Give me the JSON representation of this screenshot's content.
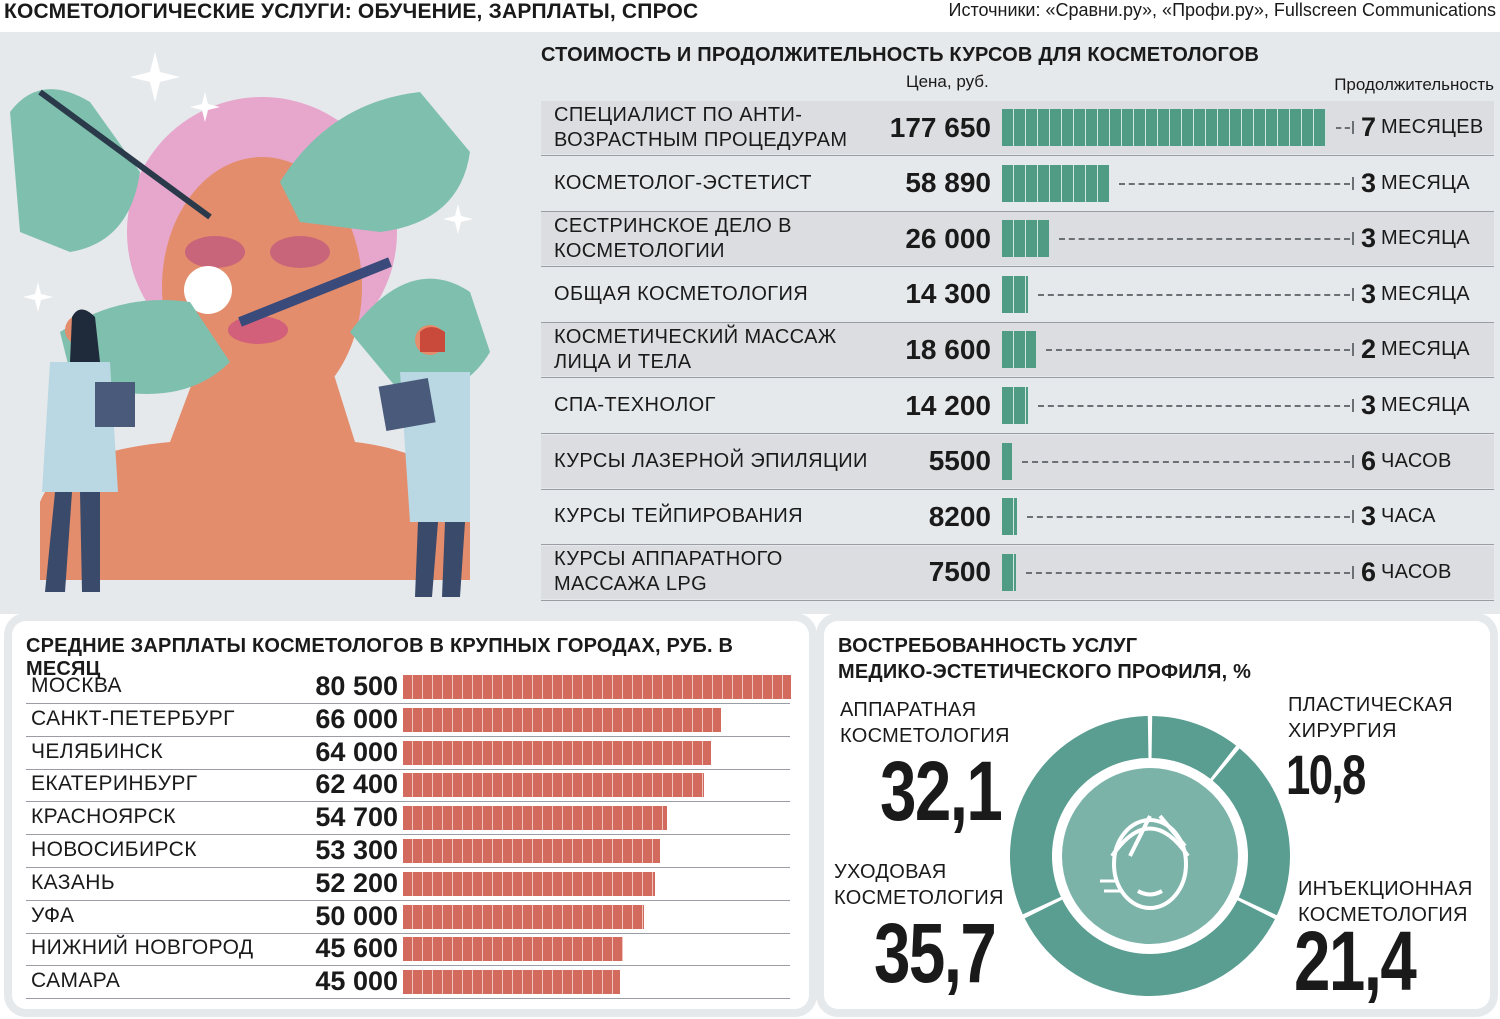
{
  "header": {
    "title": "КОСМЕТОЛОГИЧЕСКИЕ УСЛУГИ: ОБУЧЕНИЕ, ЗАРПЛАТЫ, СПРОС",
    "sources": "Источники: «Сравни.ру», «Профи.ру», Fullscreen Communications"
  },
  "colors": {
    "teal": "#4f9b84",
    "teal_dark": "#5a9e92",
    "coral": "#d26a5e",
    "panel_bg": "#e6e9ec"
  },
  "chart_data": [
    {
      "type": "bar",
      "orientation": "horizontal",
      "title": "СТОИМОСТЬ И ПРОДОЛЖИТЕЛЬНОСТЬ КУРСОВ ДЛЯ КОСМЕТОЛОГОВ",
      "value_header": "Цена, руб.",
      "duration_header": "Продолжительность",
      "rows": [
        {
          "name": "Специалист по анти-возрастным процедурам",
          "price": 177650,
          "price_label": "177 650",
          "duration_num": "7",
          "duration_unit": "месяцев"
        },
        {
          "name": "Косметолог-эстетист",
          "price": 58890,
          "price_label": "58 890",
          "duration_num": "3",
          "duration_unit": "месяца"
        },
        {
          "name": "Сестринское дело в косметологии",
          "price": 26000,
          "price_label": "26 000",
          "duration_num": "3",
          "duration_unit": "месяца"
        },
        {
          "name": "Общая косметология",
          "price": 14300,
          "price_label": "14 300",
          "duration_num": "3",
          "duration_unit": "месяца"
        },
        {
          "name": "Косметический массаж лица и тела",
          "price": 18600,
          "price_label": "18 600",
          "duration_num": "2",
          "duration_unit": "месяца"
        },
        {
          "name": "СПА-технолог",
          "price": 14200,
          "price_label": "14 200",
          "duration_num": "3",
          "duration_unit": "месяца"
        },
        {
          "name": "Курсы лазерной эпиляции",
          "price": 5500,
          "price_label": "5500",
          "duration_num": "6",
          "duration_unit": "часов"
        },
        {
          "name": "Курсы тейпирования",
          "price": 8200,
          "price_label": "8200",
          "duration_num": "3",
          "duration_unit": "часа"
        },
        {
          "name": "Курсы аппаратного массажа LPG",
          "price": 7500,
          "price_label": "7500",
          "duration_num": "6",
          "duration_unit": "часов"
        }
      ]
    },
    {
      "type": "bar",
      "orientation": "horizontal",
      "title": "СРЕДНИЕ ЗАРПЛАТЫ КОСМЕТОЛОГОВ В КРУПНЫХ ГОРОДАХ, РУБ. В МЕСЯЦ",
      "categories": [
        "Москва",
        "Санкт-Петербург",
        "Челябинск",
        "Екатеринбург",
        "Красноярск",
        "Новосибирск",
        "Казань",
        "Уфа",
        "Нижний Новгород",
        "Самара"
      ],
      "values": [
        80500,
        66000,
        64000,
        62400,
        54700,
        53300,
        52200,
        50000,
        45600,
        45000
      ],
      "value_labels": [
        "80 500",
        "66 000",
        "64 000",
        "62 400",
        "54 700",
        "53 300",
        "52 200",
        "50 000",
        "45 600",
        "45 000"
      ]
    },
    {
      "type": "pie",
      "variant": "donut",
      "title_line1": "ВОСТРЕБОВАННОСТЬ УСЛУГ",
      "title_line2": "МЕДИКО-ЭСТЕТИЧЕСКОГО ПРОФИЛЯ, %",
      "slices": [
        {
          "name": "Пластическая хирургия",
          "value": 10.8,
          "value_label": "10,8"
        },
        {
          "name": "Инъекционная косметология",
          "value": 21.4,
          "value_label": "21,4"
        },
        {
          "name": "Уходовая косметология",
          "value": 35.7,
          "value_label": "35,7"
        },
        {
          "name": "Аппаратная косметология",
          "value": 32.1,
          "value_label": "32,1"
        }
      ],
      "labels": {
        "apparatus": [
          "АППАРАТНАЯ",
          "КОСМЕТОЛОГИЯ"
        ],
        "plastic": [
          "ПЛАСТИЧЕСКАЯ",
          "ХИРУРГИЯ"
        ],
        "care": [
          "УХОДОВАЯ",
          "КОСМЕТОЛОГИЯ"
        ],
        "injection": [
          "ИНЪЕКЦИОННАЯ",
          "КОСМЕТОЛОГИЯ"
        ]
      }
    }
  ]
}
